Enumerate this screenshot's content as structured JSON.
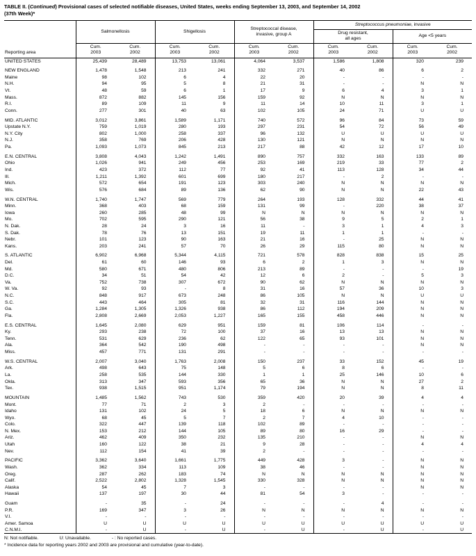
{
  "colors": {
    "text": "#000000",
    "background": "#ffffff",
    "rule": "#000000"
  },
  "title": {
    "prefix": "TABLE II. (",
    "continued": "Continued",
    "rest": ") Provisional cases of selected notifiable diseases, United States, weeks ending September 13, 2003, and September 14, 2002",
    "line2": "(37th Week)*"
  },
  "header": {
    "reporting_area_label": "Reporting area",
    "group_salmonellosis": "Salmonellosis",
    "group_shigellosis": "Shigellosis",
    "group_strep_a_line1": "Streptococcal disease,",
    "group_strep_a_line2": "invasive, group A",
    "strep_pneumo_italic": "Streptococcus pneumoniae",
    "strep_pneumo_rest": ", invasive",
    "group_drug_resistant_line1": "Drug resistant,",
    "group_drug_resistant_line2": "all ages",
    "group_age_under5": "Age <5 years",
    "cum_label": "Cum.",
    "years": [
      "2003",
      "2002",
      "2003",
      "2002",
      "2003",
      "2002",
      "2003",
      "2002",
      "2003",
      "2002"
    ]
  },
  "rows": [
    {
      "type": "total",
      "area": "UNITED STATES",
      "values": [
        "25,439",
        "28,489",
        "13,753",
        "13,061",
        "4,064",
        "3,537",
        "1,586",
        "1,808",
        "320",
        "239"
      ]
    },
    {
      "type": "spacer"
    },
    {
      "type": "region",
      "area": "NEW ENGLAND",
      "values": [
        "1,478",
        "1,548",
        "213",
        "241",
        "332",
        "271",
        "40",
        "86",
        "6",
        "2"
      ]
    },
    {
      "type": "state",
      "area": "Maine",
      "values": [
        "98",
        "102",
        "6",
        "4",
        "22",
        "20",
        "-",
        "-",
        "-",
        "-"
      ]
    },
    {
      "type": "state",
      "area": "N.H.",
      "values": [
        "94",
        "95",
        "5",
        "8",
        "21",
        "31",
        "-",
        "-",
        "N",
        "N"
      ]
    },
    {
      "type": "state",
      "area": "Vt.",
      "values": [
        "48",
        "59",
        "6",
        "1",
        "17",
        "9",
        "6",
        "4",
        "3",
        "1"
      ]
    },
    {
      "type": "state",
      "area": "Mass.",
      "values": [
        "872",
        "882",
        "145",
        "156",
        "159",
        "92",
        "N",
        "N",
        "N",
        "N"
      ]
    },
    {
      "type": "state",
      "area": "R.I.",
      "values": [
        "89",
        "109",
        "11",
        "9",
        "11",
        "14",
        "10",
        "11",
        "3",
        "1"
      ]
    },
    {
      "type": "state",
      "area": "Conn.",
      "values": [
        "277",
        "301",
        "40",
        "63",
        "102",
        "105",
        "24",
        "71",
        "U",
        "U"
      ]
    },
    {
      "type": "spacer"
    },
    {
      "type": "region",
      "area": "MID. ATLANTIC",
      "values": [
        "3,012",
        "3,861",
        "1,589",
        "1,171",
        "740",
        "572",
        "96",
        "84",
        "73",
        "59"
      ]
    },
    {
      "type": "state",
      "area": "Upstate N.Y.",
      "values": [
        "759",
        "1,019",
        "280",
        "193",
        "297",
        "231",
        "54",
        "72",
        "56",
        "49"
      ]
    },
    {
      "type": "state",
      "area": "N.Y. City",
      "values": [
        "802",
        "1,000",
        "258",
        "337",
        "96",
        "132",
        "U",
        "U",
        "U",
        "U"
      ]
    },
    {
      "type": "state",
      "area": "N.J.",
      "values": [
        "358",
        "769",
        "206",
        "428",
        "130",
        "121",
        "N",
        "N",
        "N",
        "N"
      ]
    },
    {
      "type": "state",
      "area": "Pa.",
      "values": [
        "1,093",
        "1,073",
        "845",
        "213",
        "217",
        "88",
        "42",
        "12",
        "17",
        "10"
      ]
    },
    {
      "type": "spacer"
    },
    {
      "type": "region",
      "area": "E.N. CENTRAL",
      "values": [
        "3,808",
        "4,043",
        "1,242",
        "1,491",
        "890",
        "757",
        "332",
        "163",
        "133",
        "89"
      ]
    },
    {
      "type": "state",
      "area": "Ohio",
      "values": [
        "1,026",
        "941",
        "249",
        "456",
        "253",
        "169",
        "219",
        "33",
        "77",
        "2"
      ]
    },
    {
      "type": "state",
      "area": "Ind.",
      "values": [
        "423",
        "372",
        "112",
        "77",
        "92",
        "41",
        "113",
        "128",
        "34",
        "44"
      ]
    },
    {
      "type": "state",
      "area": "Ill.",
      "values": [
        "1,211",
        "1,392",
        "601",
        "699",
        "180",
        "217",
        "-",
        "2",
        "-",
        "-"
      ]
    },
    {
      "type": "state",
      "area": "Mich.",
      "values": [
        "572",
        "654",
        "191",
        "123",
        "303",
        "240",
        "N",
        "N",
        "N",
        "N"
      ]
    },
    {
      "type": "state",
      "area": "Wis.",
      "values": [
        "576",
        "684",
        "89",
        "136",
        "62",
        "90",
        "N",
        "N",
        "22",
        "43"
      ]
    },
    {
      "type": "spacer"
    },
    {
      "type": "region",
      "area": "W.N. CENTRAL",
      "values": [
        "1,740",
        "1,747",
        "569",
        "779",
        "264",
        "193",
        "128",
        "332",
        "44",
        "41"
      ]
    },
    {
      "type": "state",
      "area": "Minn.",
      "values": [
        "368",
        "403",
        "68",
        "159",
        "131",
        "99",
        "-",
        "220",
        "38",
        "37"
      ]
    },
    {
      "type": "state",
      "area": "Iowa",
      "values": [
        "260",
        "285",
        "48",
        "99",
        "N",
        "N",
        "N",
        "N",
        "N",
        "N"
      ]
    },
    {
      "type": "state",
      "area": "Mo.",
      "values": [
        "702",
        "595",
        "290",
        "121",
        "56",
        "38",
        "9",
        "5",
        "2",
        "1"
      ]
    },
    {
      "type": "state",
      "area": "N. Dak.",
      "values": [
        "28",
        "24",
        "3",
        "16",
        "11",
        "-",
        "3",
        "1",
        "4",
        "3"
      ]
    },
    {
      "type": "state",
      "area": "S. Dak.",
      "values": [
        "78",
        "76",
        "13",
        "151",
        "19",
        "11",
        "1",
        "1",
        "-",
        "-"
      ]
    },
    {
      "type": "state",
      "area": "Nebr.",
      "values": [
        "101",
        "123",
        "90",
        "163",
        "21",
        "16",
        "-",
        "25",
        "N",
        "N"
      ]
    },
    {
      "type": "state",
      "area": "Kans.",
      "values": [
        "203",
        "241",
        "57",
        "70",
        "26",
        "29",
        "115",
        "80",
        "N",
        "N"
      ]
    },
    {
      "type": "spacer"
    },
    {
      "type": "region",
      "area": "S. ATLANTIC",
      "values": [
        "6,902",
        "6,968",
        "5,344",
        "4,115",
        "721",
        "578",
        "828",
        "838",
        "15",
        "25"
      ]
    },
    {
      "type": "state",
      "area": "Del.",
      "values": [
        "61",
        "60",
        "146",
        "93",
        "6",
        "2",
        "1",
        "3",
        "N",
        "N"
      ]
    },
    {
      "type": "state",
      "area": "Md.",
      "values": [
        "580",
        "671",
        "480",
        "806",
        "213",
        "89",
        "-",
        "-",
        "-",
        "19"
      ]
    },
    {
      "type": "state",
      "area": "D.C.",
      "values": [
        "34",
        "51",
        "54",
        "42",
        "12",
        "6",
        "2",
        "-",
        "5",
        "3"
      ]
    },
    {
      "type": "state",
      "area": "Va.",
      "values": [
        "752",
        "738",
        "307",
        "672",
        "90",
        "62",
        "N",
        "N",
        "N",
        "N"
      ]
    },
    {
      "type": "state",
      "area": "W. Va.",
      "values": [
        "92",
        "93",
        "-",
        "8",
        "31",
        "16",
        "57",
        "36",
        "10",
        "3"
      ]
    },
    {
      "type": "state",
      "area": "N.C.",
      "values": [
        "848",
        "917",
        "673",
        "248",
        "86",
        "105",
        "N",
        "N",
        "U",
        "U"
      ]
    },
    {
      "type": "state",
      "area": "S.C.",
      "values": [
        "443",
        "464",
        "305",
        "81",
        "32",
        "31",
        "116",
        "144",
        "N",
        "N"
      ]
    },
    {
      "type": "state",
      "area": "Ga.",
      "values": [
        "1,284",
        "1,305",
        "1,326",
        "938",
        "86",
        "112",
        "194",
        "209",
        "N",
        "N"
      ]
    },
    {
      "type": "state",
      "area": "Fla.",
      "values": [
        "2,808",
        "2,669",
        "2,053",
        "1,227",
        "165",
        "155",
        "458",
        "446",
        "N",
        "N"
      ]
    },
    {
      "type": "spacer"
    },
    {
      "type": "region",
      "area": "E.S. CENTRAL",
      "values": [
        "1,645",
        "2,080",
        "629",
        "951",
        "159",
        "81",
        "106",
        "114",
        "-",
        "-"
      ]
    },
    {
      "type": "state",
      "area": "Ky.",
      "values": [
        "293",
        "238",
        "72",
        "100",
        "37",
        "16",
        "13",
        "13",
        "N",
        "N"
      ]
    },
    {
      "type": "state",
      "area": "Tenn.",
      "values": [
        "531",
        "629",
        "236",
        "62",
        "122",
        "65",
        "93",
        "101",
        "N",
        "N"
      ]
    },
    {
      "type": "state",
      "area": "Ala.",
      "values": [
        "364",
        "542",
        "190",
        "498",
        "-",
        "-",
        "-",
        "-",
        "N",
        "N"
      ]
    },
    {
      "type": "state",
      "area": "Miss.",
      "values": [
        "457",
        "771",
        "131",
        "291",
        "-",
        "-",
        "-",
        "-",
        "-",
        "-"
      ]
    },
    {
      "type": "spacer"
    },
    {
      "type": "region",
      "area": "W.S. CENTRAL",
      "values": [
        "2,007",
        "3,040",
        "1,763",
        "2,008",
        "150",
        "237",
        "33",
        "152",
        "45",
        "19"
      ]
    },
    {
      "type": "state",
      "area": "Ark.",
      "values": [
        "498",
        "643",
        "75",
        "148",
        "5",
        "6",
        "8",
        "6",
        "-",
        "-"
      ]
    },
    {
      "type": "state",
      "area": "La.",
      "values": [
        "258",
        "535",
        "144",
        "330",
        "1",
        "1",
        "25",
        "146",
        "10",
        "6"
      ]
    },
    {
      "type": "state",
      "area": "Okla.",
      "values": [
        "313",
        "347",
        "593",
        "356",
        "65",
        "36",
        "N",
        "N",
        "27",
        "2"
      ]
    },
    {
      "type": "state",
      "area": "Tex.",
      "values": [
        "938",
        "1,515",
        "951",
        "1,174",
        "79",
        "194",
        "N",
        "N",
        "8",
        "11"
      ]
    },
    {
      "type": "spacer"
    },
    {
      "type": "region",
      "area": "MOUNTAIN",
      "values": [
        "1,485",
        "1,562",
        "743",
        "530",
        "359",
        "420",
        "20",
        "39",
        "4",
        "4"
      ]
    },
    {
      "type": "state",
      "area": "Mont.",
      "values": [
        "77",
        "71",
        "2",
        "3",
        "2",
        "-",
        "-",
        "-",
        "-",
        "-"
      ]
    },
    {
      "type": "state",
      "area": "Idaho",
      "values": [
        "131",
        "102",
        "24",
        "5",
        "18",
        "6",
        "N",
        "N",
        "N",
        "N"
      ]
    },
    {
      "type": "state",
      "area": "Wyo.",
      "values": [
        "68",
        "45",
        "5",
        "7",
        "2",
        "7",
        "4",
        "10",
        "-",
        "-"
      ]
    },
    {
      "type": "state",
      "area": "Colo.",
      "values": [
        "322",
        "447",
        "139",
        "118",
        "102",
        "89",
        "-",
        "-",
        "-",
        "-"
      ]
    },
    {
      "type": "state",
      "area": "N. Mex.",
      "values": [
        "153",
        "212",
        "144",
        "105",
        "89",
        "80",
        "16",
        "29",
        "-",
        "-"
      ]
    },
    {
      "type": "state",
      "area": "Ariz.",
      "values": [
        "462",
        "409",
        "350",
        "232",
        "135",
        "210",
        "-",
        "-",
        "N",
        "N"
      ]
    },
    {
      "type": "state",
      "area": "Utah",
      "values": [
        "160",
        "122",
        "38",
        "21",
        "9",
        "28",
        "-",
        "-",
        "4",
        "4"
      ]
    },
    {
      "type": "state",
      "area": "Nev.",
      "values": [
        "112",
        "154",
        "41",
        "39",
        "2",
        "-",
        "-",
        "-",
        "-",
        "-"
      ]
    },
    {
      "type": "spacer"
    },
    {
      "type": "region",
      "area": "PACIFIC",
      "values": [
        "3,362",
        "3,640",
        "1,661",
        "1,775",
        "449",
        "428",
        "3",
        "-",
        "N",
        "N"
      ]
    },
    {
      "type": "state",
      "area": "Wash.",
      "values": [
        "362",
        "334",
        "113",
        "109",
        "38",
        "46",
        "-",
        "-",
        "N",
        "N"
      ]
    },
    {
      "type": "state",
      "area": "Oreg.",
      "values": [
        "287",
        "262",
        "183",
        "74",
        "N",
        "N",
        "N",
        "N",
        "N",
        "N"
      ]
    },
    {
      "type": "state",
      "area": "Calif.",
      "values": [
        "2,522",
        "2,802",
        "1,328",
        "1,545",
        "330",
        "328",
        "N",
        "N",
        "N",
        "N"
      ]
    },
    {
      "type": "state",
      "area": "Alaska",
      "values": [
        "54",
        "45",
        "7",
        "3",
        "-",
        "-",
        "-",
        "-",
        "N",
        "N"
      ]
    },
    {
      "type": "state",
      "area": "Hawaii",
      "values": [
        "137",
        "197",
        "30",
        "44",
        "81",
        "54",
        "3",
        "-",
        "-",
        "-"
      ]
    },
    {
      "type": "spacer"
    },
    {
      "type": "territory",
      "area": "Guam",
      "values": [
        "-",
        "35",
        "-",
        "24",
        "-",
        "-",
        "-",
        "4",
        "-",
        "-"
      ]
    },
    {
      "type": "territory",
      "area": "P.R.",
      "values": [
        "169",
        "347",
        "3",
        "26",
        "N",
        "N",
        "N",
        "N",
        "N",
        "N"
      ]
    },
    {
      "type": "territory",
      "area": "V.I.",
      "values": [
        "-",
        "-",
        "-",
        "-",
        "-",
        "-",
        "-",
        "-",
        "-",
        "-"
      ]
    },
    {
      "type": "territory",
      "area": "Amer. Samoa",
      "values": [
        "U",
        "U",
        "U",
        "U",
        "U",
        "U",
        "U",
        "U",
        "U",
        "U"
      ]
    },
    {
      "type": "territory",
      "area": "C.N.M.I.",
      "values": [
        "-",
        "U",
        "-",
        "U",
        "-",
        "U",
        "-",
        "U",
        "-",
        "U"
      ]
    }
  ],
  "footnotes": {
    "legend": [
      "N: Not notifiable.",
      "U: Unavailable.",
      "- : No reported cases."
    ],
    "note": "* Incidence data for reporting years 2002 and 2003 are provisional and cumulative (year-to-date)."
  }
}
